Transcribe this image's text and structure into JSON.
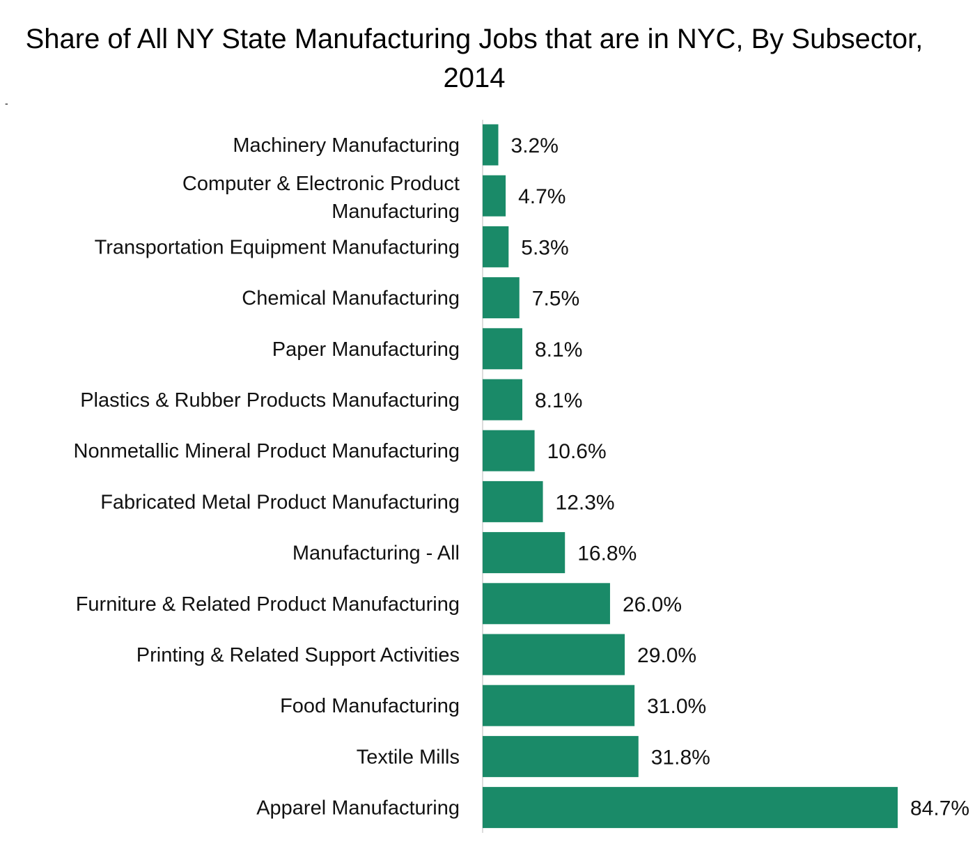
{
  "chart_data": {
    "type": "bar",
    "orientation": "horizontal",
    "title": "Share of All NY State Manufacturing Jobs that are in NYC, By Subsector, 2014",
    "stray_mark": "-",
    "xlabel": "",
    "ylabel": "",
    "xlim": [
      0,
      85
    ],
    "grid": false,
    "legend": "none",
    "bar_color": "#1a8a68",
    "value_format": "percent, 1 decimal",
    "categories": [
      "Machinery Manufacturing",
      "Computer & Electronic Product Manufacturing",
      "Transportation Equipment Manufacturing",
      "Chemical Manufacturing",
      "Paper Manufacturing",
      "Plastics & Rubber Products Manufacturing",
      "Nonmetallic Mineral Product Manufacturing",
      "Fabricated Metal Product Manufacturing",
      "Manufacturing - All",
      "Furniture & Related Product Manufacturing",
      "Printing & Related Support Activities",
      "Food Manufacturing",
      "Textile Mills",
      "Apparel Manufacturing"
    ],
    "values": [
      3.2,
      4.7,
      5.3,
      7.5,
      8.1,
      8.1,
      10.6,
      12.3,
      16.8,
      26.0,
      29.0,
      31.0,
      31.8,
      84.7
    ],
    "data_labels": [
      "3.2%",
      "4.7%",
      "5.3%",
      "7.5%",
      "8.1%",
      "8.1%",
      "10.6%",
      "12.3%",
      "16.8%",
      "26.0%",
      "29.0%",
      "31.0%",
      "31.8%",
      "84.7%"
    ]
  }
}
